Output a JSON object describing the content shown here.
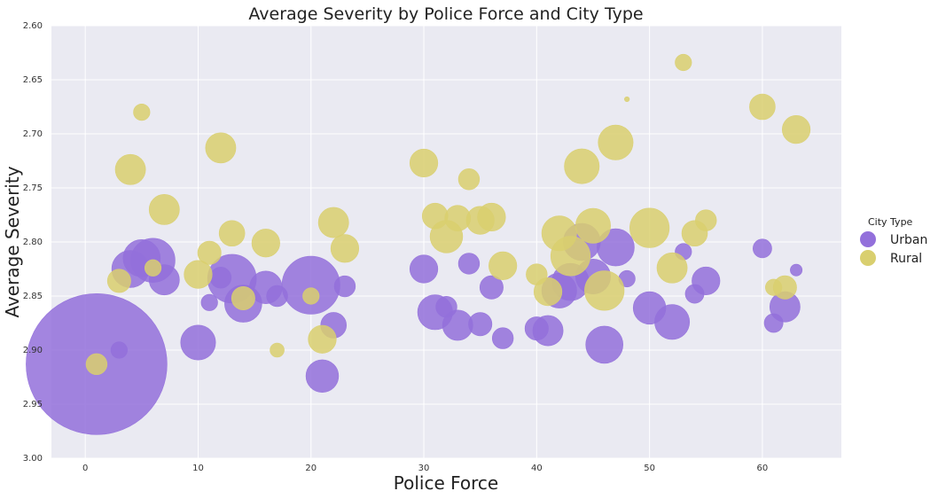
{
  "chart_data": {
    "type": "scatter",
    "title": "Average Severity by Police Force and City Type",
    "xlabel": "Police Force",
    "ylabel": "Average Severity",
    "xlim": [
      -3,
      67
    ],
    "ylim": [
      2.6,
      3.0
    ],
    "y_inverted": true,
    "xticks": [
      0,
      10,
      20,
      30,
      40,
      50,
      60
    ],
    "yticks": [
      2.6,
      2.65,
      2.7,
      2.75,
      2.8,
      2.85,
      2.9,
      2.95,
      3.0
    ],
    "xtick_labels": [
      "0",
      "10",
      "20",
      "30",
      "40",
      "50",
      "60"
    ],
    "ytick_labels": [
      "2.60",
      "2.65",
      "2.70",
      "2.75",
      "2.80",
      "2.85",
      "2.90",
      "2.95",
      "3.00"
    ],
    "grid": true,
    "legend": {
      "title": "City Type",
      "position": "right",
      "entries": [
        "Urban",
        "Rural"
      ]
    },
    "colors": {
      "Urban": "#9370DB",
      "Rural": "#D9CF6F",
      "plot_bg": "#EAEAF2",
      "grid": "#FFFFFF"
    },
    "size_encoding": "bubble area proportional to value",
    "series": [
      {
        "name": "Urban",
        "points": [
          {
            "x": 1,
            "y": 2.913,
            "s": 60
          },
          {
            "x": 3,
            "y": 2.9,
            "s": 6
          },
          {
            "x": 4,
            "y": 2.825,
            "s": 15
          },
          {
            "x": 5,
            "y": 2.815,
            "s": 15
          },
          {
            "x": 6,
            "y": 2.817,
            "s": 18
          },
          {
            "x": 7,
            "y": 2.835,
            "s": 12
          },
          {
            "x": 10,
            "y": 2.893,
            "s": 14
          },
          {
            "x": 11,
            "y": 2.856,
            "s": 6
          },
          {
            "x": 12,
            "y": 2.833,
            "s": 8
          },
          {
            "x": 13,
            "y": 2.834,
            "s": 20
          },
          {
            "x": 14,
            "y": 2.857,
            "s": 15
          },
          {
            "x": 16,
            "y": 2.842,
            "s": 13
          },
          {
            "x": 17,
            "y": 2.85,
            "s": 8
          },
          {
            "x": 20,
            "y": 2.84,
            "s": 24
          },
          {
            "x": 21,
            "y": 2.924,
            "s": 13
          },
          {
            "x": 22,
            "y": 2.877,
            "s": 10
          },
          {
            "x": 23,
            "y": 2.841,
            "s": 8
          },
          {
            "x": 30,
            "y": 2.825,
            "s": 11
          },
          {
            "x": 31,
            "y": 2.865,
            "s": 14
          },
          {
            "x": 32,
            "y": 2.86,
            "s": 8
          },
          {
            "x": 33,
            "y": 2.877,
            "s": 12
          },
          {
            "x": 34,
            "y": 2.82,
            "s": 8
          },
          {
            "x": 35,
            "y": 2.876,
            "s": 9
          },
          {
            "x": 36,
            "y": 2.842,
            "s": 9
          },
          {
            "x": 37,
            "y": 2.889,
            "s": 8
          },
          {
            "x": 40,
            "y": 2.88,
            "s": 9
          },
          {
            "x": 41,
            "y": 2.882,
            "s": 12
          },
          {
            "x": 42,
            "y": 2.845,
            "s": 14
          },
          {
            "x": 43,
            "y": 2.837,
            "s": 15
          },
          {
            "x": 44,
            "y": 2.8,
            "s": 15
          },
          {
            "x": 45,
            "y": 2.832,
            "s": 14
          },
          {
            "x": 46,
            "y": 2.895,
            "s": 15
          },
          {
            "x": 47,
            "y": 2.805,
            "s": 15
          },
          {
            "x": 48,
            "y": 2.834,
            "s": 6
          },
          {
            "x": 50,
            "y": 2.861,
            "s": 13
          },
          {
            "x": 52,
            "y": 2.874,
            "s": 14
          },
          {
            "x": 53,
            "y": 2.809,
            "s": 6
          },
          {
            "x": 54,
            "y": 2.848,
            "s": 7
          },
          {
            "x": 55,
            "y": 2.836,
            "s": 11
          },
          {
            "x": 60,
            "y": 2.806,
            "s": 7
          },
          {
            "x": 61,
            "y": 2.875,
            "s": 7
          },
          {
            "x": 62,
            "y": 2.86,
            "s": 12
          },
          {
            "x": 63,
            "y": 2.826,
            "s": 4
          }
        ]
      },
      {
        "name": "Rural",
        "points": [
          {
            "x": 1,
            "y": 2.913,
            "s": 8
          },
          {
            "x": 3,
            "y": 2.836,
            "s": 9
          },
          {
            "x": 4,
            "y": 2.733,
            "s": 12
          },
          {
            "x": 5,
            "y": 2.68,
            "s": 6
          },
          {
            "x": 6,
            "y": 2.824,
            "s": 6
          },
          {
            "x": 7,
            "y": 2.77,
            "s": 12
          },
          {
            "x": 10,
            "y": 2.83,
            "s": 11
          },
          {
            "x": 11,
            "y": 2.81,
            "s": 9
          },
          {
            "x": 12,
            "y": 2.713,
            "s": 12
          },
          {
            "x": 13,
            "y": 2.792,
            "s": 10
          },
          {
            "x": 14,
            "y": 2.852,
            "s": 9
          },
          {
            "x": 16,
            "y": 2.801,
            "s": 11
          },
          {
            "x": 17,
            "y": 2.9,
            "s": 5
          },
          {
            "x": 20,
            "y": 2.85,
            "s": 6
          },
          {
            "x": 21,
            "y": 2.89,
            "s": 11
          },
          {
            "x": 22,
            "y": 2.782,
            "s": 12
          },
          {
            "x": 23,
            "y": 2.806,
            "s": 11
          },
          {
            "x": 30,
            "y": 2.727,
            "s": 11
          },
          {
            "x": 31,
            "y": 2.776,
            "s": 10
          },
          {
            "x": 32,
            "y": 2.795,
            "s": 13
          },
          {
            "x": 33,
            "y": 2.778,
            "s": 10
          },
          {
            "x": 34,
            "y": 2.742,
            "s": 8
          },
          {
            "x": 35,
            "y": 2.78,
            "s": 11
          },
          {
            "x": 36,
            "y": 2.777,
            "s": 11
          },
          {
            "x": 37,
            "y": 2.822,
            "s": 11
          },
          {
            "x": 40,
            "y": 2.83,
            "s": 8
          },
          {
            "x": 41,
            "y": 2.846,
            "s": 11
          },
          {
            "x": 42,
            "y": 2.792,
            "s": 14
          },
          {
            "x": 43,
            "y": 2.813,
            "s": 16
          },
          {
            "x": 44,
            "y": 2.73,
            "s": 14
          },
          {
            "x": 45,
            "y": 2.785,
            "s": 14
          },
          {
            "x": 46,
            "y": 2.845,
            "s": 16
          },
          {
            "x": 47,
            "y": 2.708,
            "s": 14
          },
          {
            "x": 48,
            "y": 2.668,
            "s": 1
          },
          {
            "x": 50,
            "y": 2.787,
            "s": 16
          },
          {
            "x": 52,
            "y": 2.824,
            "s": 12
          },
          {
            "x": 53,
            "y": 2.634,
            "s": 6
          },
          {
            "x": 54,
            "y": 2.792,
            "s": 10
          },
          {
            "x": 55,
            "y": 2.78,
            "s": 8
          },
          {
            "x": 60,
            "y": 2.675,
            "s": 10
          },
          {
            "x": 61,
            "y": 2.842,
            "s": 6
          },
          {
            "x": 62,
            "y": 2.842,
            "s": 9
          },
          {
            "x": 63,
            "y": 2.696,
            "s": 11
          }
        ]
      }
    ]
  }
}
